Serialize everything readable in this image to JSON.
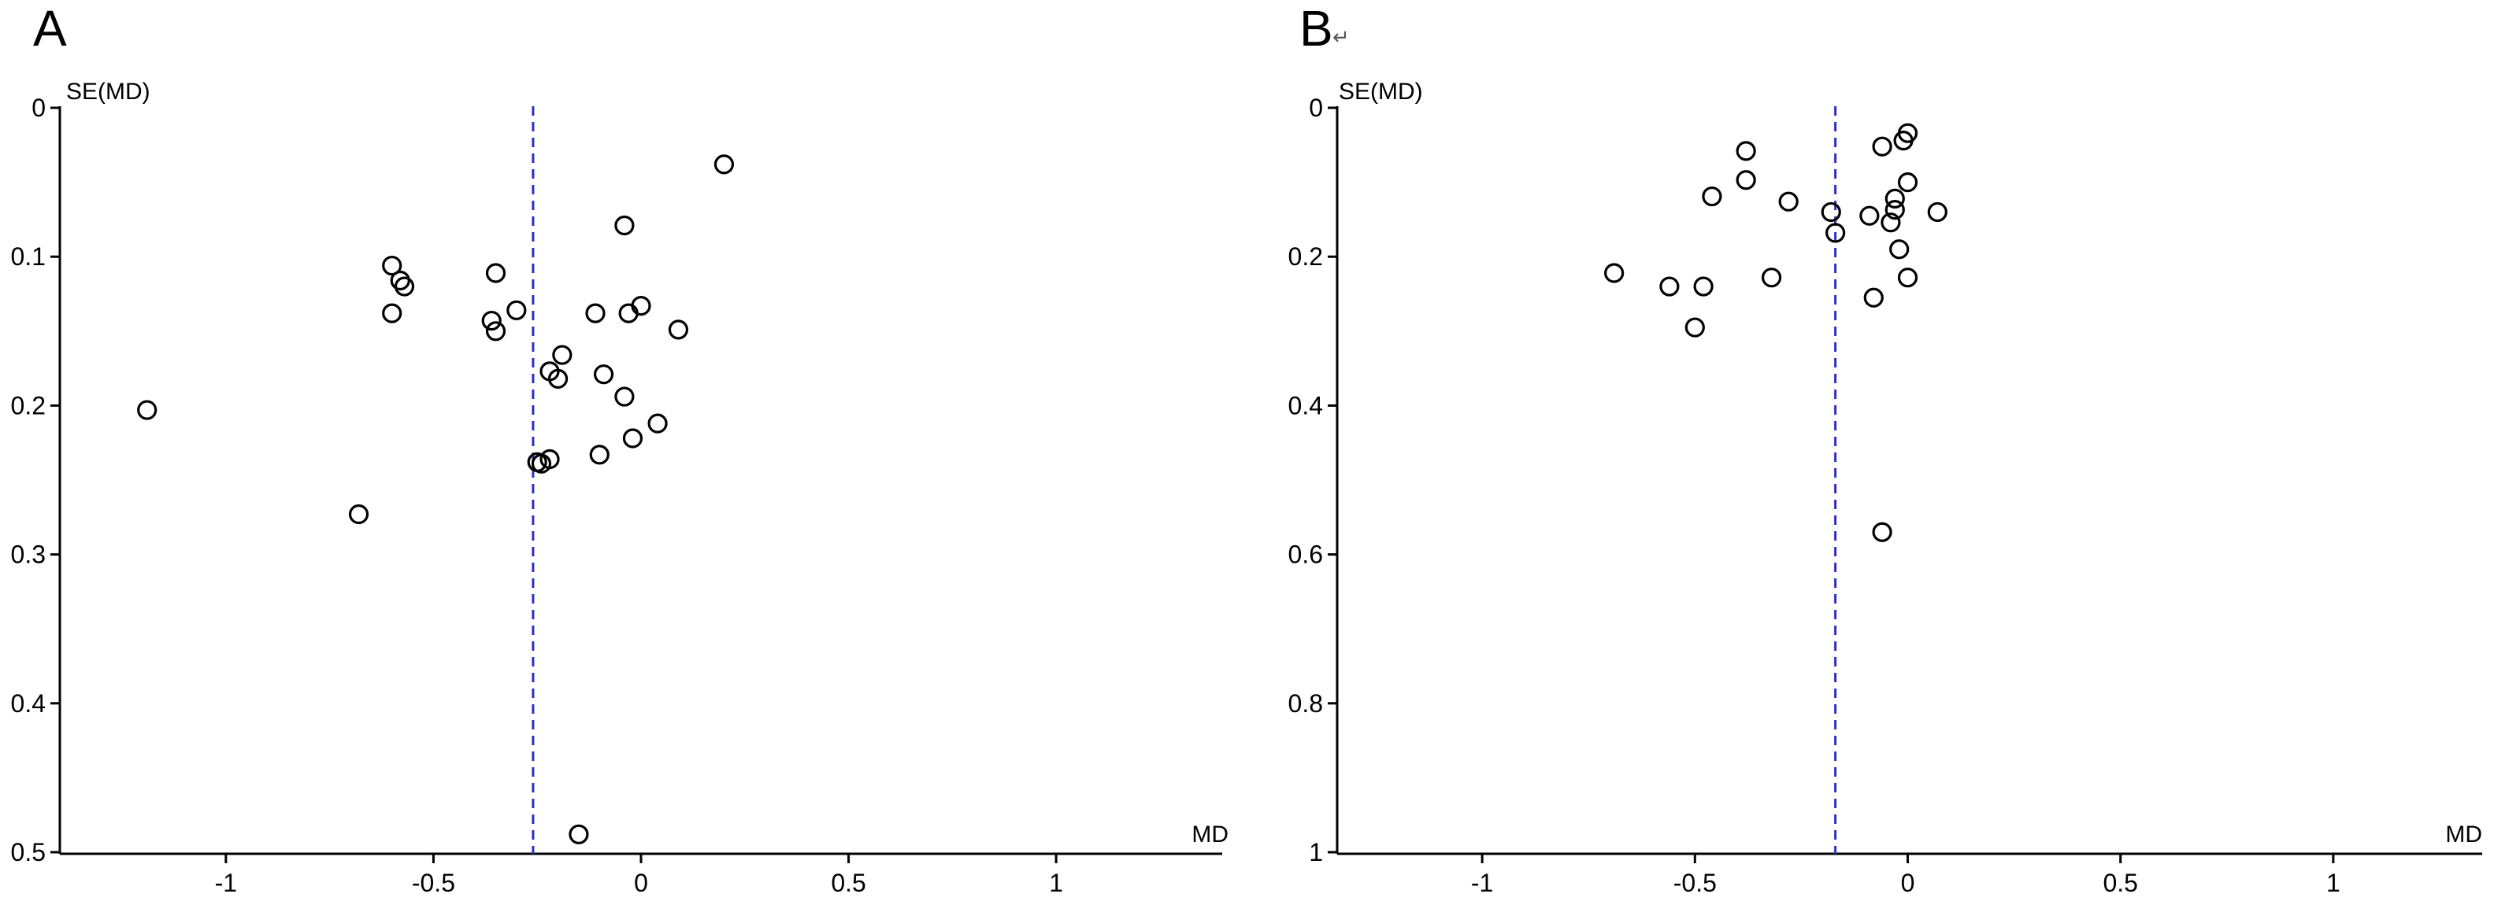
{
  "colors": {
    "reference_line": "#2e2ec8",
    "marker_stroke": "#000000",
    "axis": "#000000"
  },
  "chart_data": [
    {
      "type": "scatter",
      "panel_label": "A",
      "panel_mark": "",
      "title": "",
      "xlabel": "MD",
      "ylabel": "SE(MD)",
      "xlim": [
        -1.4,
        1.4
      ],
      "ylim": [
        0,
        0.5
      ],
      "y_inverted": true,
      "x_ticks": [
        -1,
        -0.5,
        0,
        0.5,
        1
      ],
      "x_tick_labels": [
        "-1",
        "-0.5",
        "0",
        "0.5",
        "1"
      ],
      "y_ticks": [
        0,
        0.1,
        0.2,
        0.3,
        0.4,
        0.5
      ],
      "y_tick_labels": [
        "0",
        "0.1",
        "0.2",
        "0.3",
        "0.4",
        "0.5"
      ],
      "reference_line_x": -0.26,
      "marker": "open-circle",
      "grid": false,
      "points": [
        {
          "x": 0.2,
          "y": 0.038
        },
        {
          "x": -0.04,
          "y": 0.079
        },
        {
          "x": -0.6,
          "y": 0.106
        },
        {
          "x": -0.58,
          "y": 0.116
        },
        {
          "x": -0.57,
          "y": 0.12
        },
        {
          "x": -0.35,
          "y": 0.111
        },
        {
          "x": -0.6,
          "y": 0.138
        },
        {
          "x": -0.36,
          "y": 0.143
        },
        {
          "x": -0.35,
          "y": 0.15
        },
        {
          "x": -0.3,
          "y": 0.136
        },
        {
          "x": -0.11,
          "y": 0.138
        },
        {
          "x": 0.0,
          "y": 0.133
        },
        {
          "x": -0.03,
          "y": 0.138
        },
        {
          "x": 0.09,
          "y": 0.149
        },
        {
          "x": -0.19,
          "y": 0.166
        },
        {
          "x": -0.22,
          "y": 0.177
        },
        {
          "x": -0.2,
          "y": 0.182
        },
        {
          "x": -0.09,
          "y": 0.179
        },
        {
          "x": -0.04,
          "y": 0.194
        },
        {
          "x": -1.19,
          "y": 0.203
        },
        {
          "x": 0.04,
          "y": 0.212
        },
        {
          "x": -0.02,
          "y": 0.222
        },
        {
          "x": -0.1,
          "y": 0.233
        },
        {
          "x": -0.25,
          "y": 0.238
        },
        {
          "x": -0.22,
          "y": 0.236
        },
        {
          "x": -0.24,
          "y": 0.239
        },
        {
          "x": -0.68,
          "y": 0.273
        },
        {
          "x": -0.15,
          "y": 0.488
        }
      ]
    },
    {
      "type": "scatter",
      "panel_label": "B",
      "panel_mark": "↵",
      "title": "",
      "xlabel": "MD",
      "ylabel": "SE(MD)",
      "xlim": [
        -1.35,
        1.35
      ],
      "ylim": [
        0,
        1
      ],
      "y_inverted": true,
      "x_ticks": [
        -1,
        -0.5,
        0,
        0.5,
        1
      ],
      "x_tick_labels": [
        "-1",
        "-0.5",
        "0",
        "0.5",
        "1"
      ],
      "y_ticks": [
        0,
        0.2,
        0.4,
        0.6,
        0.8,
        1
      ],
      "y_tick_labels": [
        "0",
        "0.2",
        "0.4",
        "0.6",
        "0.8",
        "1"
      ],
      "reference_line_x": -0.17,
      "marker": "open-circle",
      "grid": false,
      "points": [
        {
          "x": 0.0,
          "y": 0.034
        },
        {
          "x": -0.01,
          "y": 0.044
        },
        {
          "x": -0.06,
          "y": 0.052
        },
        {
          "x": -0.38,
          "y": 0.058
        },
        {
          "x": -0.38,
          "y": 0.097
        },
        {
          "x": 0.0,
          "y": 0.1
        },
        {
          "x": -0.46,
          "y": 0.119
        },
        {
          "x": -0.28,
          "y": 0.126
        },
        {
          "x": -0.03,
          "y": 0.122
        },
        {
          "x": -0.03,
          "y": 0.137
        },
        {
          "x": -0.18,
          "y": 0.14
        },
        {
          "x": 0.07,
          "y": 0.14
        },
        {
          "x": -0.09,
          "y": 0.145
        },
        {
          "x": -0.04,
          "y": 0.154
        },
        {
          "x": -0.17,
          "y": 0.168
        },
        {
          "x": -0.02,
          "y": 0.19
        },
        {
          "x": -0.69,
          "y": 0.222
        },
        {
          "x": -0.32,
          "y": 0.228
        },
        {
          "x": 0.0,
          "y": 0.228
        },
        {
          "x": -0.56,
          "y": 0.24
        },
        {
          "x": -0.48,
          "y": 0.24
        },
        {
          "x": -0.08,
          "y": 0.255
        },
        {
          "x": -0.5,
          "y": 0.295
        },
        {
          "x": -0.06,
          "y": 0.57
        }
      ]
    }
  ]
}
